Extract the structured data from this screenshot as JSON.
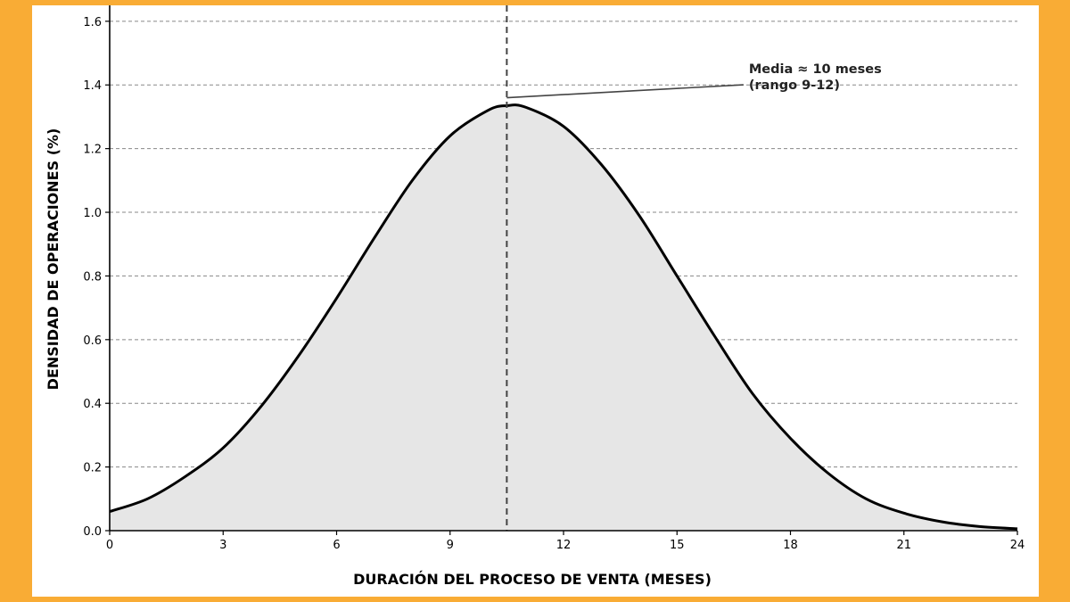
{
  "colors": {
    "frame": "#F9AC35",
    "panel": "#FFFFFF",
    "curve": "#000000",
    "fill": "#E6E6E6",
    "grid": "#888888",
    "mean_line": "#444444",
    "annotation_line": "#444444"
  },
  "chart_data": {
    "type": "area",
    "title": "",
    "xlabel": "DURACIÓN DEL PROCESO DE VENTA (MESES)",
    "ylabel": "DENSIDAD DE OPERACIONES (%)",
    "xlim": [
      0,
      24
    ],
    "ylim": [
      0,
      1.65
    ],
    "xticks": [
      0,
      3,
      6,
      9,
      12,
      15,
      18,
      21,
      24
    ],
    "yticks": [
      0.0,
      0.2,
      0.4,
      0.6,
      0.8,
      1.0,
      1.2,
      1.4,
      1.6
    ],
    "ytick_labels": [
      "0.0",
      "0.2",
      "0.4",
      "0.6",
      "0.8",
      "1.0",
      "1.2",
      "1.4",
      "1.6"
    ],
    "grid": {
      "y": true,
      "x": false,
      "style": "dashed"
    },
    "series": [
      {
        "x": [
          0,
          1,
          2,
          3,
          4,
          5,
          6,
          7,
          8,
          9,
          10,
          10.5,
          11,
          12,
          13,
          14,
          15,
          16,
          17,
          18,
          19,
          20,
          21,
          22,
          23,
          24
        ],
        "y": [
          0.06,
          0.1,
          0.17,
          0.26,
          0.39,
          0.55,
          0.73,
          0.92,
          1.1,
          1.24,
          1.32,
          1.335,
          1.33,
          1.27,
          1.15,
          0.99,
          0.8,
          0.61,
          0.43,
          0.29,
          0.18,
          0.1,
          0.055,
          0.028,
          0.013,
          0.006
        ]
      }
    ],
    "vline": {
      "x": 10.5,
      "style": "dashed"
    },
    "annotation": {
      "lines": [
        "Media ≈ 10 meses",
        "(rango 9-12)"
      ],
      "point": {
        "x": 10.5,
        "y": 1.36
      },
      "text_anchor": {
        "x": 16.9,
        "y": 1.42
      }
    }
  }
}
